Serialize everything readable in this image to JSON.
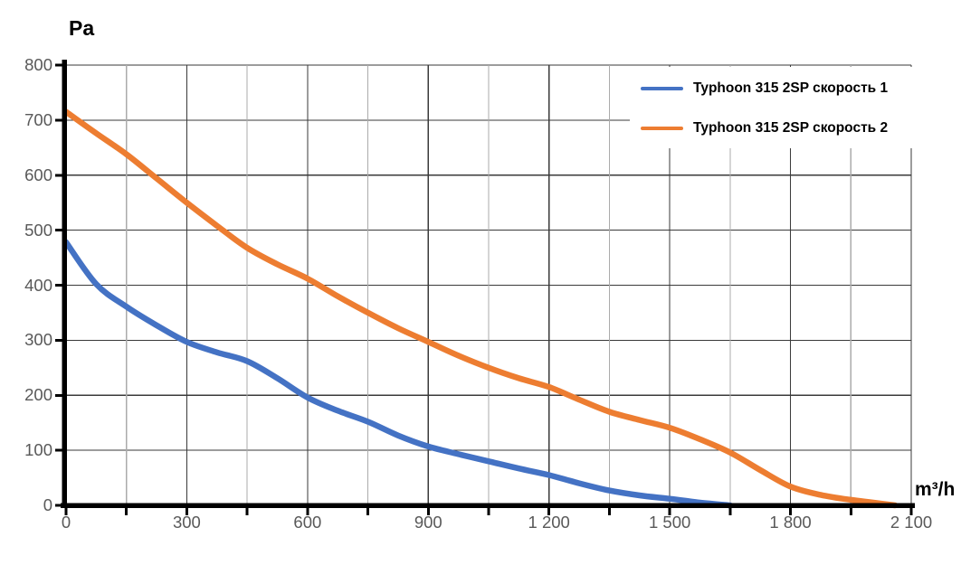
{
  "page": {
    "background": "#ffffff"
  },
  "chart_data": {
    "type": "line",
    "title": "",
    "ylabel": "Pa",
    "xlabel": "m³/h",
    "xlim": [
      0,
      2100
    ],
    "ylim": [
      0,
      800
    ],
    "x_major_tick_step": 300,
    "x_minor_tick_step": 150,
    "y_tick_step": 100,
    "x_tick_labels": [
      "0",
      "300",
      "600",
      "900",
      "1 200",
      "1 500",
      "1 800",
      "2 100"
    ],
    "y_tick_labels": [
      "0",
      "100",
      "200",
      "300",
      "400",
      "500",
      "600",
      "700",
      "800"
    ],
    "grid": {
      "on": true,
      "h_color": "#3a3a3a",
      "v_major_color": "#3a3a3a",
      "v_minor_color": "#ababab"
    },
    "axis_color": "#000000",
    "tick_label_color": "#595959",
    "legend": {
      "position": "top-right",
      "text_color": "#000000",
      "background": "#ffffff"
    },
    "series": [
      {
        "name": "Typhoon 315 2SP скорость 1",
        "color": "#4472C4",
        "points": [
          [
            0,
            478
          ],
          [
            75,
            402
          ],
          [
            150,
            361
          ],
          [
            225,
            327
          ],
          [
            300,
            297
          ],
          [
            375,
            278
          ],
          [
            450,
            262
          ],
          [
            525,
            231
          ],
          [
            600,
            196
          ],
          [
            675,
            172
          ],
          [
            750,
            152
          ],
          [
            825,
            127
          ],
          [
            900,
            107
          ],
          [
            975,
            93
          ],
          [
            1050,
            80
          ],
          [
            1125,
            67
          ],
          [
            1200,
            55
          ],
          [
            1275,
            40
          ],
          [
            1350,
            27
          ],
          [
            1425,
            18
          ],
          [
            1500,
            12
          ],
          [
            1575,
            5
          ],
          [
            1650,
            0
          ]
        ]
      },
      {
        "name": "Typhoon 315 2SP скорость 2",
        "color": "#ED7D31",
        "points": [
          [
            0,
            715
          ],
          [
            75,
            676
          ],
          [
            150,
            638
          ],
          [
            225,
            594
          ],
          [
            300,
            550
          ],
          [
            375,
            508
          ],
          [
            450,
            468
          ],
          [
            525,
            438
          ],
          [
            600,
            412
          ],
          [
            675,
            380
          ],
          [
            750,
            350
          ],
          [
            825,
            322
          ],
          [
            900,
            297
          ],
          [
            975,
            272
          ],
          [
            1050,
            250
          ],
          [
            1125,
            231
          ],
          [
            1200,
            215
          ],
          [
            1275,
            192
          ],
          [
            1350,
            170
          ],
          [
            1425,
            155
          ],
          [
            1500,
            141
          ],
          [
            1575,
            120
          ],
          [
            1650,
            96
          ],
          [
            1725,
            64
          ],
          [
            1800,
            34
          ],
          [
            1875,
            19
          ],
          [
            1950,
            10
          ],
          [
            2060,
            0
          ]
        ]
      }
    ]
  }
}
